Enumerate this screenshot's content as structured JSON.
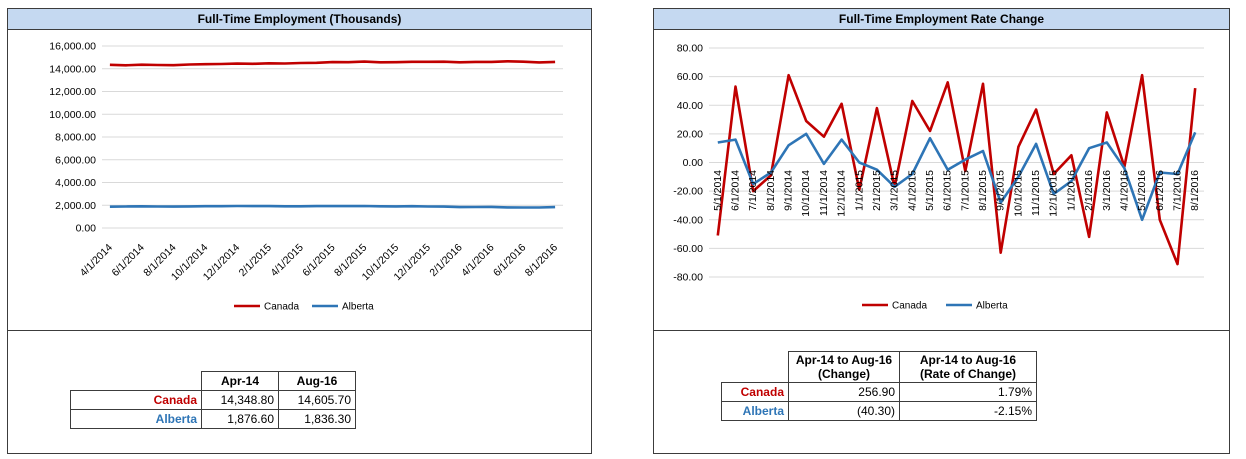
{
  "colors": {
    "canada": "#c00000",
    "alberta": "#2e75b6",
    "title_bg": "#c5d9f1",
    "grid": "#d9d9d9"
  },
  "left_panel": {
    "title": "Full-Time Employment (Thousands)",
    "legend": [
      "Canada",
      "Alberta"
    ],
    "table": {
      "headers": [
        "Apr-14",
        "Aug-16"
      ],
      "rows": [
        {
          "label": "Canada",
          "values": [
            "14,348.80",
            "14,605.70"
          ]
        },
        {
          "label": "Alberta",
          "values": [
            "1,876.60",
            "1,836.30"
          ]
        }
      ]
    }
  },
  "right_panel": {
    "title": "Full-Time Employment Rate Change",
    "legend": [
      "Canada",
      "Alberta"
    ],
    "table": {
      "headers": [
        [
          "Apr-14 to Aug-16",
          "(Change)"
        ],
        [
          "Apr-14 to Aug-16",
          "(Rate of Change)"
        ]
      ],
      "rows": [
        {
          "label": "Canada",
          "values": [
            "256.90",
            "1.79%"
          ]
        },
        {
          "label": "Alberta",
          "values": [
            "(40.30)",
            "-2.15%"
          ]
        }
      ]
    }
  },
  "chart_data": [
    {
      "type": "line",
      "title": "Full-Time Employment (Thousands)",
      "x": [
        "4/1/2014",
        "5/1/2014",
        "6/1/2014",
        "7/1/2014",
        "8/1/2014",
        "9/1/2014",
        "10/1/2014",
        "11/1/2014",
        "12/1/2014",
        "1/1/2015",
        "2/1/2015",
        "3/1/2015",
        "4/1/2015",
        "5/1/2015",
        "6/1/2015",
        "7/1/2015",
        "8/1/2015",
        "9/1/2015",
        "10/1/2015",
        "11/1/2015",
        "12/1/2015",
        "1/1/2016",
        "2/1/2016",
        "3/1/2016",
        "4/1/2016",
        "5/1/2016",
        "6/1/2016",
        "7/1/2016",
        "8/1/2016"
      ],
      "tick_labels": [
        "4/1/2014",
        "6/1/2014",
        "8/1/2014",
        "10/1/2014",
        "12/1/2014",
        "2/1/2015",
        "4/1/2015",
        "6/1/2015",
        "8/1/2015",
        "10/1/2015",
        "12/1/2015",
        "2/1/2016",
        "4/1/2016",
        "6/1/2016",
        "8/1/2016"
      ],
      "y_ticks": [
        "16,000.00",
        "14,000.00",
        "12,000.00",
        "10,000.00",
        "8,000.00",
        "6,000.00",
        "4,000.00",
        "2,000.00",
        "0.00"
      ],
      "ylim": [
        0,
        16000
      ],
      "grid": true,
      "legend_position": "bottom",
      "series": [
        {
          "name": "Canada",
          "values": [
            14348.8,
            14300,
            14352,
            14330,
            14310,
            14370,
            14398,
            14416,
            14457,
            14438,
            14476,
            14460,
            14503,
            14525,
            14581,
            14575,
            14630,
            14567,
            14578,
            14615,
            14607,
            14620,
            14567,
            14602,
            14599,
            14659,
            14620,
            14560,
            14605.7
          ]
        },
        {
          "name": "Alberta",
          "values": [
            1876.6,
            1891,
            1907,
            1892,
            1885,
            1897,
            1917,
            1916,
            1932,
            1929,
            1924,
            1907,
            1909,
            1927,
            1922,
            1924,
            1932,
            1906,
            1900,
            1913,
            1891,
            1878,
            1833,
            1848,
            1853,
            1813,
            1806,
            1798,
            1836.3
          ]
        }
      ]
    },
    {
      "type": "line",
      "title": "Full-Time Employment Rate Change",
      "x": [
        "5/1/2014",
        "6/1/2014",
        "7/1/2014",
        "8/1/2014",
        "9/1/2014",
        "10/1/2014",
        "11/1/2014",
        "12/1/2014",
        "1/1/2015",
        "2/1/2015",
        "3/1/2015",
        "4/1/2015",
        "5/1/2015",
        "6/1/2015",
        "7/1/2015",
        "8/1/2015",
        "9/1/2015",
        "10/1/2015",
        "11/1/2015",
        "12/1/2015",
        "1/1/2016",
        "2/1/2016",
        "3/1/2016",
        "4/1/2016",
        "5/1/2016",
        "6/1/2016",
        "7/1/2016",
        "8/1/2016"
      ],
      "tick_labels": [
        "5/1/2014",
        "6/1/2014",
        "7/1/2014",
        "8/1/2014",
        "9/1/2014",
        "10/1/2014",
        "11/1/2014",
        "12/1/2014",
        "1/1/2015",
        "2/1/2015",
        "3/1/2015",
        "4/1/2015",
        "5/1/2015",
        "6/1/2015",
        "7/1/2015",
        "8/1/2015",
        "9/1/2015",
        "10/1/2015",
        "11/1/2015",
        "12/1/2015",
        "1/1/2016",
        "2/1/2016",
        "3/1/2016",
        "4/1/2016",
        "5/1/2016",
        "6/1/2016",
        "7/1/2016",
        "8/1/2016"
      ],
      "y_ticks": [
        "80.00",
        "60.00",
        "40.00",
        "20.00",
        "0.00",
        "-20.00",
        "-40.00",
        "-60.00",
        "-80.00"
      ],
      "ylim": [
        -80,
        80
      ],
      "grid": true,
      "legend_position": "bottom",
      "series": [
        {
          "name": "Canada",
          "values": [
            -51,
            53,
            -20,
            -9,
            61,
            29,
            18,
            41,
            -19,
            38,
            -17,
            43,
            22,
            56,
            -6,
            55,
            -63,
            11,
            37,
            -8,
            5,
            -52,
            35,
            -3,
            61,
            -40,
            -71,
            52
          ]
        },
        {
          "name": "Alberta",
          "values": [
            14,
            16,
            -15,
            -7,
            12,
            20,
            -1,
            16,
            0,
            -5,
            -17,
            -8,
            17,
            -5,
            2,
            8,
            -28,
            -10,
            13,
            -22,
            -13,
            10,
            14,
            -4,
            -40,
            -7,
            -8,
            21
          ]
        }
      ]
    }
  ]
}
